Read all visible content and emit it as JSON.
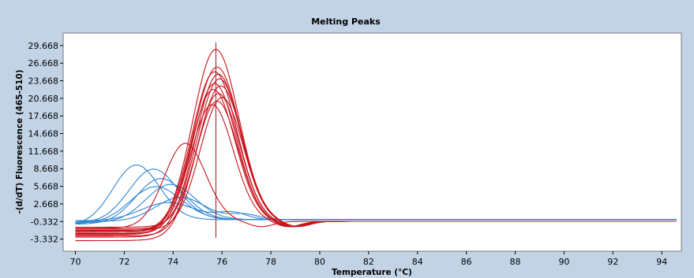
{
  "chart_data": {
    "type": "line",
    "title": "Melting Peaks",
    "xlabel": "Temperature (°C)",
    "ylabel": "-(d/dT) Fluorescence (465-510)",
    "xlim": [
      69.5,
      94.8
    ],
    "ylim": [
      -5.4,
      31.8
    ],
    "x_ticks": [
      70,
      72,
      74,
      76,
      78,
      80,
      82,
      84,
      86,
      88,
      90,
      92,
      94
    ],
    "x_tick_labels": [
      "70",
      "72",
      "74",
      "76",
      "78",
      "80",
      "82",
      "84",
      "86",
      "88",
      "90",
      "92",
      "94"
    ],
    "y_ticks": [
      -3.332,
      -0.332,
      2.668,
      5.668,
      8.668,
      11.668,
      14.668,
      17.668,
      20.668,
      23.668,
      26.668,
      29.668
    ],
    "y_tick_labels": [
      "-3.332",
      "-0.332",
      "2.668",
      "5.668",
      "8.668",
      "11.668",
      "14.668",
      "17.668",
      "20.668",
      "23.668",
      "26.668",
      "29.668"
    ],
    "grid": false,
    "cursor_x": 75.75,
    "colors": {
      "red": "#c8141e",
      "blue": "#2f86d3"
    },
    "baseline_range": [
      70,
      94.6
    ],
    "series": [
      {
        "color": "red",
        "peak_x": 75.75,
        "peak_y": 29.0,
        "width": 0.95,
        "start_y": -2.6,
        "end_y": -0.3,
        "shoulder_y": 0
      },
      {
        "color": "red",
        "peak_x": 75.8,
        "peak_y": 26.0,
        "width": 0.95,
        "start_y": -2.2,
        "end_y": -0.3,
        "shoulder_y": 0
      },
      {
        "color": "red",
        "peak_x": 75.7,
        "peak_y": 25.2,
        "width": 0.92,
        "start_y": -1.9,
        "end_y": -0.3,
        "shoulder_y": 0
      },
      {
        "color": "red",
        "peak_x": 75.85,
        "peak_y": 24.8,
        "width": 0.92,
        "start_y": -3.0,
        "end_y": -0.3,
        "shoulder_y": 0
      },
      {
        "color": "red",
        "peak_x": 75.9,
        "peak_y": 24.0,
        "width": 0.9,
        "start_y": -1.6,
        "end_y": -0.3,
        "shoulder_y": 0
      },
      {
        "color": "red",
        "peak_x": 75.7,
        "peak_y": 23.2,
        "width": 0.9,
        "start_y": -2.4,
        "end_y": -0.3,
        "shoulder_y": 0
      },
      {
        "color": "red",
        "peak_x": 75.95,
        "peak_y": 22.8,
        "width": 0.9,
        "start_y": -1.3,
        "end_y": -0.3,
        "shoulder_y": 0
      },
      {
        "color": "red",
        "peak_x": 75.65,
        "peak_y": 22.2,
        "width": 0.9,
        "start_y": -2.0,
        "end_y": -0.3,
        "shoulder_y": 0
      },
      {
        "color": "red",
        "peak_x": 75.85,
        "peak_y": 21.5,
        "width": 0.88,
        "start_y": -2.8,
        "end_y": -0.3,
        "shoulder_y": 0
      },
      {
        "color": "red",
        "peak_x": 76.0,
        "peak_y": 20.8,
        "width": 0.88,
        "start_y": -1.8,
        "end_y": -0.3,
        "shoulder_y": 0
      },
      {
        "color": "red",
        "peak_x": 75.8,
        "peak_y": 20.2,
        "width": 0.88,
        "start_y": -3.6,
        "end_y": -0.3,
        "shoulder_y": 0
      },
      {
        "color": "red",
        "peak_x": 75.6,
        "peak_y": 19.6,
        "width": 0.88,
        "start_y": -2.5,
        "end_y": -0.3,
        "shoulder_y": 0
      },
      {
        "color": "red",
        "peak_x": 74.5,
        "peak_y": 13.0,
        "width": 0.85,
        "start_y": -1.5,
        "end_y": -0.3,
        "shoulder_y": 0
      },
      {
        "color": "blue",
        "peak_x": 72.5,
        "peak_y": 9.3,
        "width": 0.95,
        "start_y": -1.0,
        "end_y": 0.0,
        "shoulder_y": 0
      },
      {
        "color": "blue",
        "peak_x": 73.2,
        "peak_y": 8.6,
        "width": 1.0,
        "start_y": -0.6,
        "end_y": 0.0,
        "shoulder_y": 0
      },
      {
        "color": "blue",
        "peak_x": 73.5,
        "peak_y": 7.0,
        "width": 1.0,
        "start_y": -0.8,
        "end_y": 0.0,
        "shoulder_y": 0
      },
      {
        "color": "blue",
        "peak_x": 73.9,
        "peak_y": 6.0,
        "width": 1.0,
        "start_y": -0.5,
        "end_y": 0.0,
        "shoulder_y": 0
      },
      {
        "color": "blue",
        "peak_x": 73.3,
        "peak_y": 5.6,
        "width": 1.05,
        "start_y": -0.7,
        "end_y": 0.0,
        "shoulder_y": 0
      },
      {
        "color": "blue",
        "peak_x": 74.3,
        "peak_y": 3.8,
        "width": 1.0,
        "start_y": -0.3,
        "end_y": 0.0,
        "shoulder_y": 0.9
      },
      {
        "color": "blue",
        "peak_x": 73.8,
        "peak_y": 2.9,
        "width": 1.1,
        "start_y": -0.2,
        "end_y": 0.0,
        "shoulder_y": 1.2
      }
    ]
  }
}
